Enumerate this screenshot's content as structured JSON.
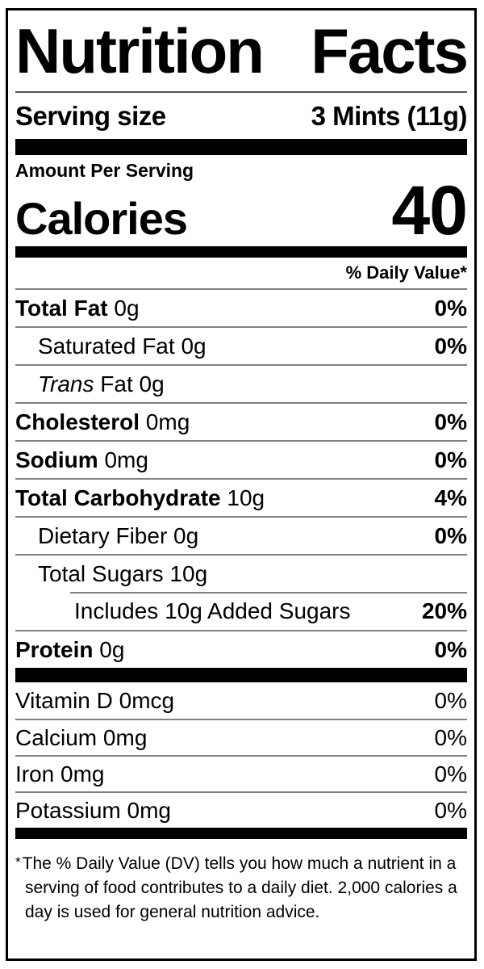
{
  "label": {
    "title": "Nutrition Facts",
    "serving": {
      "label": "Serving size",
      "value": "3 Mints (11g)"
    },
    "calories": {
      "section_label": "Amount Per Serving",
      "label": "Calories",
      "value": "40"
    },
    "daily_value_header": "% Daily Value*",
    "nutrients": [
      {
        "name": "Total Fat",
        "amount": "0g",
        "dv": "0%",
        "bold": true,
        "dv_bold": true,
        "indent": 0
      },
      {
        "name": "Saturated Fat",
        "amount": "0g",
        "dv": "0%",
        "bold": false,
        "dv_bold": true,
        "indent": 1
      },
      {
        "italic": "Trans",
        "name": "Fat",
        "amount": "0g",
        "dv": "",
        "bold": false,
        "dv_bold": false,
        "indent": 1
      },
      {
        "name": "Cholesterol",
        "amount": "0mg",
        "dv": "0%",
        "bold": true,
        "dv_bold": true,
        "indent": 0
      },
      {
        "name": "Sodium",
        "amount": "0mg",
        "dv": "0%",
        "bold": true,
        "dv_bold": true,
        "indent": 0
      },
      {
        "name": "Total Carbohydrate",
        "amount": "10g",
        "dv": "4%",
        "bold": true,
        "dv_bold": true,
        "indent": 0
      },
      {
        "name": "Dietary Fiber",
        "amount": "0g",
        "dv": "0%",
        "bold": false,
        "dv_bold": true,
        "indent": 1
      },
      {
        "name": "Total Sugars",
        "amount": "10g",
        "dv": "",
        "bold": false,
        "dv_bold": false,
        "indent": 1
      },
      {
        "name": "Includes 10g Added Sugars",
        "amount": "",
        "dv": "20%",
        "bold": false,
        "dv_bold": true,
        "indent": 2,
        "partial_rule": true
      },
      {
        "name": "Protein",
        "amount": "0g",
        "dv": "0%",
        "bold": true,
        "dv_bold": true,
        "indent": 0
      }
    ],
    "vitamins": [
      {
        "name": "Vitamin D",
        "amount": "0mcg",
        "dv": "0%",
        "bold": false,
        "dv_bold": false,
        "indent": 0
      },
      {
        "name": "Calcium",
        "amount": "0mg",
        "dv": "0%",
        "bold": false,
        "dv_bold": false,
        "indent": 0
      },
      {
        "name": "Iron",
        "amount": "0mg",
        "dv": "0%",
        "bold": false,
        "dv_bold": false,
        "indent": 0
      },
      {
        "name": "Potassium",
        "amount": "0mg",
        "dv": "0%",
        "bold": false,
        "dv_bold": false,
        "indent": 0
      }
    ],
    "footnote_marker": "*",
    "footnote": "The % Daily Value (DV) tells you how much a nutrient in a serving of food contributes to a daily diet. 2,000 calories a day is used for general nutrition advice."
  },
  "colors": {
    "background": "#ffffff",
    "text": "#000000",
    "separator_bar": "#000000",
    "hairline_rule": "#808080"
  }
}
